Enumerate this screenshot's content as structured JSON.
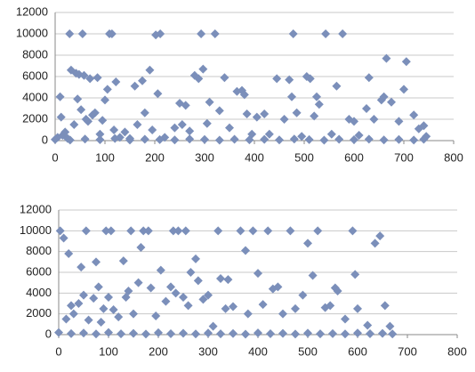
{
  "chart_data": [
    {
      "type": "scatter",
      "color": "#7b8fba",
      "grid": true,
      "xlim": [
        0,
        800
      ],
      "xticks": [
        0,
        100,
        200,
        300,
        400,
        500,
        600,
        700,
        800
      ],
      "ylim": [
        0,
        12000
      ],
      "yticks": [
        0,
        2000,
        4000,
        6000,
        8000,
        10000,
        12000
      ],
      "x": [
        5,
        10,
        12,
        15,
        20,
        25,
        29,
        32,
        38,
        42,
        45,
        48,
        52,
        55,
        58,
        62,
        66,
        70,
        75,
        80,
        85,
        90,
        95,
        100,
        105,
        109,
        114,
        118,
        122,
        130,
        140,
        150,
        160,
        165,
        175,
        180,
        190,
        195,
        202,
        206,
        211,
        220,
        240,
        250,
        255,
        262,
        270,
        280,
        288,
        293,
        297,
        305,
        310,
        321,
        330,
        340,
        350,
        365,
        375,
        380,
        385,
        395,
        405,
        420,
        430,
        445,
        460,
        470,
        475,
        478,
        485,
        495,
        505,
        512,
        520,
        525,
        530,
        543,
        555,
        565,
        577,
        590,
        600,
        610,
        625,
        630,
        640,
        655,
        660,
        665,
        675,
        690,
        700,
        705,
        720,
        730,
        740,
        745,
        0,
        30,
        60,
        90,
        120,
        150,
        180,
        210,
        240,
        270,
        300,
        330,
        360,
        390,
        420,
        450,
        480,
        510,
        540,
        570,
        600,
        630,
        660,
        690,
        720,
        740
      ],
      "values": [
        300,
        4100,
        2200,
        500,
        800,
        200,
        10000,
        6600,
        1500,
        6300,
        3900,
        6200,
        2900,
        10000,
        6100,
        2000,
        1800,
        5800,
        2400,
        2600,
        5900,
        600,
        1900,
        3800,
        4800,
        10000,
        10000,
        1000,
        5500,
        300,
        800,
        200,
        5100,
        1500,
        5600,
        2600,
        6600,
        1000,
        9900,
        4400,
        10000,
        300,
        1200,
        3500,
        1500,
        3300,
        900,
        6100,
        5800,
        10000,
        6700,
        1600,
        3600,
        10000,
        2800,
        5900,
        1200,
        4600,
        4700,
        4300,
        2500,
        600,
        2200,
        2500,
        600,
        5800,
        2000,
        5700,
        4100,
        10000,
        2600,
        400,
        6000,
        5800,
        2300,
        4100,
        3400,
        10000,
        600,
        5100,
        10000,
        2000,
        1800,
        500,
        3000,
        5900,
        2000,
        3800,
        4100,
        7700,
        3600,
        1800,
        4800,
        7400,
        2400,
        1100,
        1400,
        400,
        100,
        50,
        150,
        80,
        200,
        50,
        120,
        90,
        60,
        150,
        100,
        40,
        130,
        70,
        110,
        60,
        150,
        90,
        40,
        120,
        80,
        140,
        60,
        100,
        50,
        130
      ]
    },
    {
      "type": "scatter",
      "color": "#7b8fba",
      "grid": true,
      "xlim": [
        0,
        800
      ],
      "xticks": [
        0,
        100,
        200,
        300,
        400,
        500,
        600,
        700,
        800
      ],
      "ylim": [
        0,
        12000
      ],
      "yticks": [
        0,
        2000,
        4000,
        6000,
        8000,
        10000,
        12000
      ],
      "x": [
        3,
        10,
        15,
        20,
        25,
        30,
        40,
        45,
        50,
        55,
        60,
        70,
        75,
        80,
        85,
        90,
        95,
        100,
        105,
        110,
        120,
        130,
        135,
        140,
        145,
        150,
        160,
        165,
        170,
        180,
        185,
        195,
        205,
        215,
        225,
        230,
        235,
        240,
        250,
        255,
        260,
        265,
        275,
        280,
        290,
        300,
        310,
        320,
        325,
        335,
        340,
        350,
        365,
        375,
        380,
        390,
        400,
        410,
        420,
        430,
        440,
        450,
        465,
        475,
        490,
        500,
        510,
        520,
        535,
        545,
        555,
        560,
        575,
        590,
        595,
        600,
        620,
        635,
        645,
        655,
        665,
        0,
        25,
        50,
        75,
        100,
        125,
        150,
        175,
        200,
        225,
        250,
        275,
        300,
        325,
        350,
        375,
        400,
        425,
        450,
        475,
        500,
        525,
        550,
        575,
        600,
        625,
        650,
        670
      ],
      "values": [
        10000,
        9300,
        1500,
        7800,
        2800,
        2000,
        3000,
        6500,
        3800,
        10000,
        1400,
        3500,
        7000,
        4600,
        1200,
        2500,
        10000,
        3600,
        10000,
        2400,
        1700,
        7100,
        3600,
        4200,
        10000,
        2000,
        5000,
        8400,
        10000,
        10000,
        4500,
        1800,
        6200,
        3200,
        4600,
        10000,
        4000,
        10000,
        3600,
        10000,
        2800,
        6000,
        7300,
        5200,
        3400,
        3800,
        800,
        10000,
        5400,
        2500,
        5300,
        2700,
        10000,
        8100,
        2000,
        10000,
        5900,
        2900,
        10000,
        4400,
        4600,
        2000,
        10000,
        2500,
        3800,
        8800,
        5700,
        10000,
        2600,
        2800,
        4500,
        4200,
        1500,
        10000,
        5800,
        2500,
        900,
        8800,
        9500,
        2800,
        800,
        200,
        100,
        150,
        60,
        200,
        80,
        120,
        50,
        180,
        90,
        130,
        60,
        150,
        70,
        110,
        40,
        160,
        90,
        120,
        50,
        140,
        80,
        100,
        60,
        150,
        90,
        120,
        60
      ]
    }
  ]
}
